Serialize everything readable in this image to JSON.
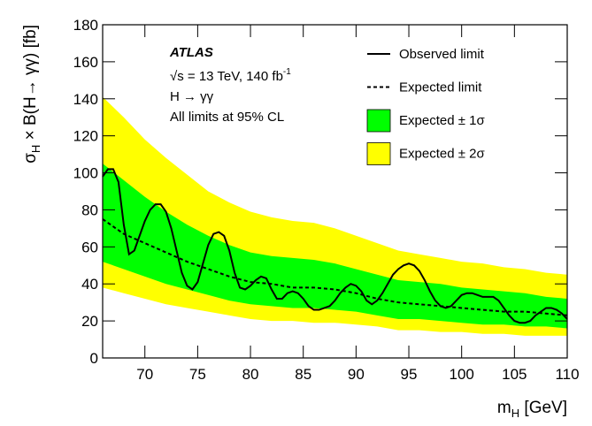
{
  "chart_data": {
    "type": "limit",
    "x_label": {
      "main": "m",
      "sub": "H",
      "rest": " [GeV]"
    },
    "y_label": {
      "main": "σ",
      "sub": "H",
      "rest": " × B(H→ γγ) [fb]"
    },
    "annotations": {
      "experiment": "ATLAS",
      "energy": {
        "text": "√s = 13 TeV, 140 fb",
        "sup": "-1"
      },
      "process": "H → γγ",
      "cl": "All limits at 95% CL"
    },
    "xlim": [
      66,
      110
    ],
    "xticks": [
      70,
      75,
      80,
      85,
      90,
      95,
      100,
      105,
      110
    ],
    "ylim": [
      0,
      180
    ],
    "yticks": [
      0,
      20,
      40,
      60,
      80,
      100,
      120,
      140,
      160,
      180
    ],
    "legend": "upper right",
    "x": [
      66,
      68,
      70,
      72,
      74,
      76,
      78,
      80,
      82,
      84,
      86,
      88,
      90,
      92,
      94,
      96,
      98,
      100,
      102,
      104,
      106,
      108,
      110
    ],
    "series": [
      {
        "name": "Observed limit",
        "kind": "line",
        "linestyle": "solid",
        "color": "#000000",
        "x": [
          66,
          66.5,
          67,
          67.5,
          68,
          68.5,
          69,
          69.5,
          70,
          70.5,
          71,
          71.5,
          72,
          72.5,
          73,
          73.5,
          74,
          74.5,
          75,
          75.5,
          76,
          76.5,
          77,
          77.5,
          78,
          78.5,
          79,
          79.5,
          80,
          80.5,
          81,
          81.5,
          82,
          82.5,
          83,
          83.5,
          84,
          84.5,
          85,
          85.5,
          86,
          86.5,
          87,
          87.5,
          88,
          88.5,
          89,
          89.5,
          90,
          90.5,
          91,
          91.5,
          92,
          92.5,
          93,
          93.5,
          94,
          94.5,
          95,
          95.5,
          96,
          96.5,
          97,
          97.5,
          98,
          98.5,
          99,
          99.5,
          100,
          100.5,
          101,
          101.5,
          102,
          102.5,
          103,
          103.5,
          104,
          104.5,
          105,
          105.5,
          106,
          106.5,
          107,
          107.5,
          108,
          108.5,
          109,
          109.5,
          110
        ],
        "values": [
          98,
          102,
          102,
          95,
          72,
          56,
          58,
          66,
          74,
          80,
          83,
          83,
          79,
          70,
          58,
          46,
          39,
          37,
          41,
          51,
          61,
          67,
          68,
          66,
          58,
          46,
          38,
          37,
          39,
          42,
          44,
          43,
          37,
          32,
          32,
          35,
          36,
          35,
          32,
          28,
          26,
          26,
          27,
          28,
          31,
          35,
          38,
          40,
          39,
          36,
          31,
          29,
          31,
          35,
          40,
          45,
          48,
          50,
          51,
          50,
          47,
          42,
          36,
          31,
          28,
          27,
          28,
          31,
          34,
          35,
          35,
          34,
          33,
          33,
          33,
          31,
          27,
          23,
          20,
          19,
          19,
          20,
          23,
          25,
          27,
          27,
          26,
          24,
          21
        ]
      },
      {
        "name": "Expected limit",
        "kind": "line",
        "linestyle": "dashed",
        "color": "#000000",
        "values": [
          75,
          67,
          62,
          57,
          52,
          48,
          44,
          41,
          40,
          38,
          38,
          37,
          35,
          32,
          30,
          29,
          28,
          27,
          26,
          25,
          25,
          24,
          23
        ]
      },
      {
        "name": "Expected ± 1σ",
        "kind": "band",
        "color": "#00ff00",
        "low": [
          52,
          48,
          44,
          40,
          37,
          34,
          31,
          29,
          28,
          27,
          27,
          26,
          25,
          23,
          21,
          21,
          20,
          19,
          18,
          18,
          17,
          17,
          16
        ],
        "high": [
          105,
          96,
          87,
          79,
          72,
          66,
          61,
          57,
          55,
          54,
          53,
          51,
          48,
          45,
          42,
          41,
          40,
          38,
          37,
          36,
          35,
          33,
          32
        ]
      },
      {
        "name": "Expected ± 2σ",
        "kind": "band",
        "color": "#ffff00",
        "low": [
          38,
          35,
          32,
          29,
          27,
          25,
          23,
          21,
          20,
          20,
          19,
          19,
          18,
          17,
          15,
          15,
          14,
          14,
          13,
          13,
          12,
          12,
          12
        ],
        "high": [
          141,
          130,
          118,
          108,
          99,
          90,
          84,
          79,
          76,
          74,
          73,
          70,
          66,
          62,
          58,
          56,
          54,
          52,
          51,
          49,
          48,
          46,
          45
        ]
      }
    ]
  }
}
